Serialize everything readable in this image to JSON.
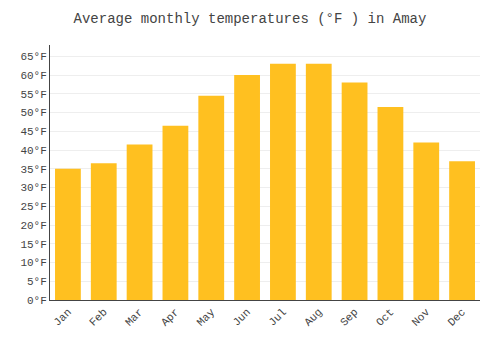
{
  "chart_data": {
    "type": "bar",
    "title": "Average monthly temperatures (°F ) in Amay",
    "categories": [
      "Jan",
      "Feb",
      "Mar",
      "Apr",
      "May",
      "Jun",
      "Jul",
      "Aug",
      "Sep",
      "Oct",
      "Nov",
      "Dec"
    ],
    "values": [
      35.0,
      36.5,
      41.5,
      46.5,
      54.5,
      60.0,
      63.0,
      63.0,
      58.0,
      51.5,
      42.0,
      37.0
    ],
    "color": "#FFC020",
    "ylim": [
      0,
      68
    ],
    "yticks": [
      {
        "value": 0,
        "label": "0°F"
      },
      {
        "value": 5,
        "label": "5°F"
      },
      {
        "value": 10,
        "label": "10°F"
      },
      {
        "value": 15,
        "label": "15°F"
      },
      {
        "value": 20,
        "label": "20°F"
      },
      {
        "value": 25,
        "label": "25°F"
      },
      {
        "value": 30,
        "label": "30°F"
      },
      {
        "value": 35,
        "label": "35°F"
      },
      {
        "value": 40,
        "label": "40°F"
      },
      {
        "value": 45,
        "label": "45°F"
      },
      {
        "value": 50,
        "label": "50°F"
      },
      {
        "value": 55,
        "label": "55°F"
      },
      {
        "value": 60,
        "label": "60°F"
      },
      {
        "value": 65,
        "label": "65°F"
      }
    ],
    "grid": true
  }
}
